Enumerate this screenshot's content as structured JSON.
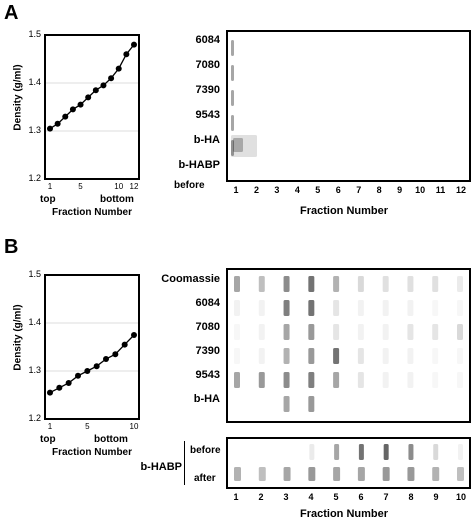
{
  "panel_A": {
    "letter": "A",
    "graph": {
      "ylabel": "Density  (g/ml)",
      "xlabel": "Fraction Number",
      "yticks": [
        "1.5",
        "1.4",
        "1.3",
        "1.2"
      ],
      "xticks": [
        "1",
        "5",
        "10",
        "12"
      ],
      "top_label": "top",
      "bottom_label": "bottom"
    },
    "blot": {
      "rows": [
        "6084",
        "7080",
        "7390",
        "9543",
        "b-HA",
        "b-HABP"
      ],
      "before_label": "before",
      "fractions": [
        "1",
        "2",
        "3",
        "4",
        "5",
        "6",
        "7",
        "8",
        "9",
        "10",
        "11",
        "12"
      ],
      "xlabel": "Fraction Number"
    }
  },
  "panel_B": {
    "letter": "B",
    "graph": {
      "ylabel": "Density  (g/ml)",
      "xlabel": "Fraction Number",
      "yticks": [
        "1.5",
        "1.4",
        "1.3",
        "1.2"
      ],
      "xticks": [
        "1",
        "5",
        "10"
      ],
      "top_label": "top",
      "bottom_label": "bottom"
    },
    "blot": {
      "rows": [
        "Coomassie",
        "6084",
        "7080",
        "7390",
        "9543",
        "b-HA"
      ],
      "habp_label": "b-HABP",
      "habp_rows": [
        "before",
        "after"
      ],
      "fractions": [
        "1",
        "2",
        "3",
        "4",
        "5",
        "6",
        "7",
        "8",
        "9",
        "10"
      ],
      "xlabel": "Fraction Number"
    }
  },
  "chart_data": [
    {
      "type": "line",
      "xlabel": "Fraction Number",
      "ylabel": "Density  (g/ml)",
      "ylim": [
        1.2,
        1.5
      ],
      "xlim": [
        1,
        12
      ],
      "x": [
        1,
        2,
        3,
        4,
        5,
        6,
        7,
        8,
        9,
        10,
        11,
        12
      ],
      "y": [
        1.305,
        1.315,
        1.33,
        1.345,
        1.355,
        1.37,
        1.385,
        1.395,
        1.41,
        1.43,
        1.46,
        1.48
      ]
    },
    {
      "type": "line",
      "xlabel": "Fraction Number",
      "ylabel": "Density  (g/ml)",
      "ylim": [
        1.2,
        1.5
      ],
      "xlim": [
        1,
        10
      ],
      "x": [
        1,
        2,
        3,
        4,
        5,
        6,
        7,
        8,
        9,
        10
      ],
      "y": [
        1.255,
        1.265,
        1.275,
        1.29,
        1.3,
        1.31,
        1.325,
        1.335,
        1.355,
        1.375
      ]
    }
  ]
}
